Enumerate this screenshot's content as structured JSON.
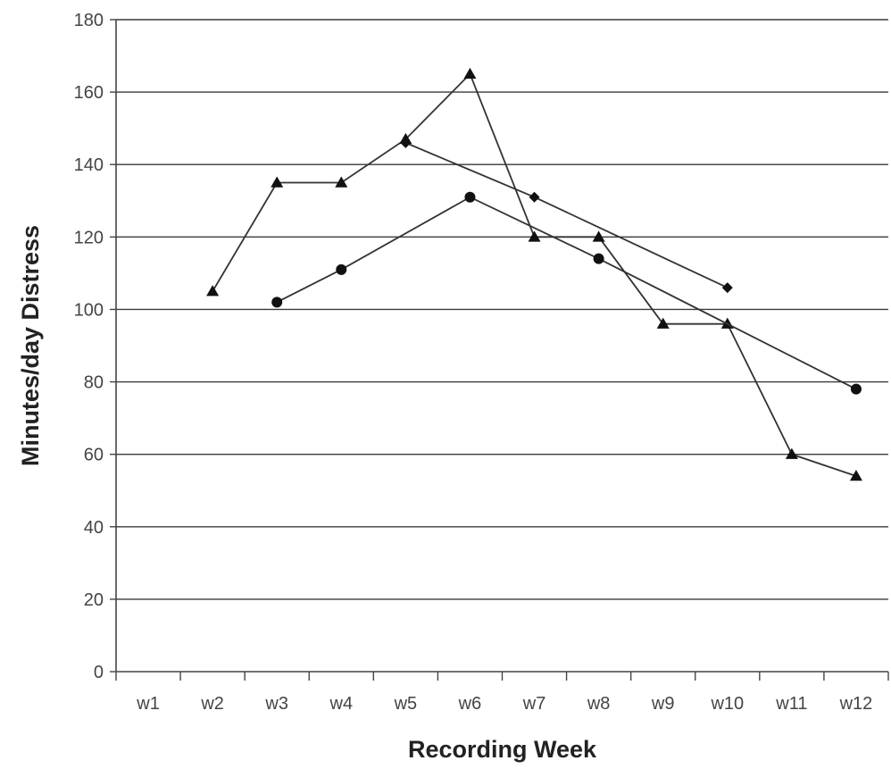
{
  "chart_data": {
    "type": "line",
    "title": "",
    "xlabel": "Recording Week",
    "ylabel": "Minutes/day Distress",
    "categories": [
      "w1",
      "w2",
      "w3",
      "w4",
      "w5",
      "w6",
      "w7",
      "w8",
      "w9",
      "w10",
      "w11",
      "w12"
    ],
    "ylim": [
      0,
      180
    ],
    "yticks": [
      0,
      20,
      40,
      60,
      80,
      100,
      120,
      140,
      160,
      180
    ],
    "grid": true,
    "legend": "none",
    "series": [
      {
        "marker": "triangle",
        "color": "#111111",
        "points": [
          {
            "x": "w2",
            "y": 105
          },
          {
            "x": "w3",
            "y": 135
          },
          {
            "x": "w4",
            "y": 135
          },
          {
            "x": "w5",
            "y": 147
          },
          {
            "x": "w6",
            "y": 165
          },
          {
            "x": "w7",
            "y": 120
          },
          {
            "x": "w8",
            "y": 120
          },
          {
            "x": "w9",
            "y": 96
          },
          {
            "x": "w10",
            "y": 96
          },
          {
            "x": "w11",
            "y": 60
          },
          {
            "x": "w12",
            "y": 54
          }
        ]
      },
      {
        "marker": "circle",
        "color": "#111111",
        "points": [
          {
            "x": "w3",
            "y": 102
          },
          {
            "x": "w4",
            "y": 111
          },
          {
            "x": "w6",
            "y": 131
          },
          {
            "x": "w8",
            "y": 114
          },
          {
            "x": "w12",
            "y": 78
          }
        ]
      },
      {
        "marker": "diamond",
        "color": "#111111",
        "points": [
          {
            "x": "w5",
            "y": 146
          },
          {
            "x": "w7",
            "y": 131
          },
          {
            "x": "w10",
            "y": 106
          }
        ]
      }
    ]
  }
}
